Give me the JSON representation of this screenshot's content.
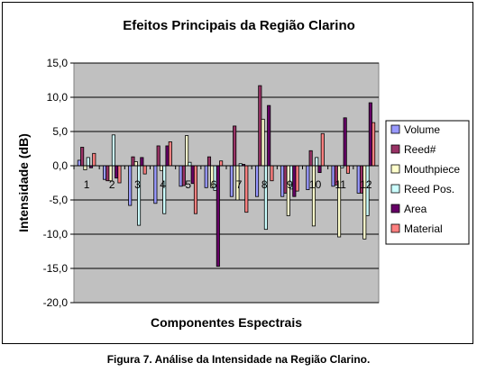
{
  "chart_data": {
    "type": "bar",
    "title": "Efeitos Principais da Região Clarino",
    "xlabel": "Componentes Espectrais",
    "ylabel": "Intensidade (dB)",
    "ylim": [
      -20,
      15
    ],
    "yticks": [
      "15,0",
      "10,0",
      "5,0",
      "0,0",
      "-5,0",
      "-10,0",
      "-15,0",
      "-20,0"
    ],
    "categories": [
      "1",
      "2",
      "3",
      "4",
      "5",
      "6",
      "7",
      "8",
      "9",
      "10",
      "11",
      "12"
    ],
    "grid": true,
    "legend_position": "right",
    "series": [
      {
        "name": "Volume",
        "color": "#9999ff",
        "values": [
          0.8,
          -2.0,
          -5.8,
          -5.5,
          -3.0,
          -3.2,
          -4.5,
          -4.5,
          -4.5,
          -3.5,
          -3.0,
          -4.0
        ]
      },
      {
        "name": "Reed#",
        "color": "#993366",
        "values": [
          2.7,
          -2.2,
          1.3,
          2.9,
          -2.9,
          1.3,
          5.8,
          11.7,
          -4.0,
          2.2,
          -2.8,
          -4.0
        ]
      },
      {
        "name": "Mouthpiece",
        "color": "#ffffcc",
        "values": [
          -0.6,
          -2.2,
          0.6,
          -0.7,
          4.4,
          -3.2,
          -5.0,
          6.8,
          -7.3,
          -8.8,
          -10.4,
          -10.7
        ]
      },
      {
        "name": "Reed Pos.",
        "color": "#ccffff",
        "values": [
          1.2,
          4.5,
          -8.7,
          -7.0,
          0.5,
          -3.6,
          0.3,
          -9.3,
          -3.4,
          1.2,
          -0.3,
          -7.3
        ]
      },
      {
        "name": "Area",
        "color": "#660066",
        "values": [
          -0.3,
          -1.8,
          1.2,
          2.9,
          -2.6,
          -14.7,
          0.2,
          8.8,
          -4.5,
          -1.0,
          7.0,
          9.2
        ]
      },
      {
        "name": "Material",
        "color": "#ff8080",
        "values": [
          1.8,
          -2.5,
          -1.2,
          3.5,
          -7.0,
          0.7,
          -6.8,
          -2.2,
          -3.7,
          4.7,
          -1.1,
          6.3
        ]
      }
    ]
  },
  "caption": "Figura 7. Análise da Intensidade na Região Clarino."
}
